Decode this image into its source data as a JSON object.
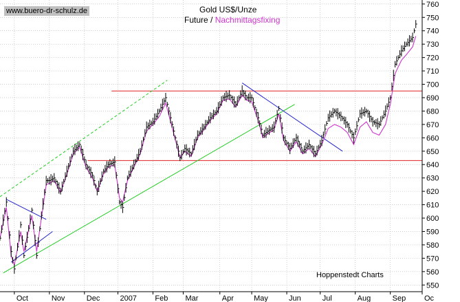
{
  "header": {
    "watermark": "www.buero-dr-schulz.de",
    "title": "Gold US$/Unze",
    "subtitle_part1": "Future /",
    "subtitle_part2": "Nachmittagsfixing"
  },
  "footer": {
    "credit": "Hoppenstedt Charts"
  },
  "colors": {
    "background": "#ffffff",
    "bars": "#000000",
    "fixing_line": "#cc33cc",
    "resistance_lines": "#e02020",
    "trend_lines": "#2222cc",
    "uptrend_channel": "#22cc22",
    "grid": "#b0b0b0"
  },
  "chart_data": {
    "type": "line",
    "title": "Gold US$/Unze",
    "subtitle": "Future / Nachmittagsfixing",
    "x_unit": "trading days from start of chart (Sep 2006)",
    "xlim": [
      0,
      265
    ],
    "ylim": [
      545,
      763
    ],
    "y_ticks": [
      550,
      560,
      570,
      580,
      590,
      600,
      610,
      620,
      630,
      640,
      650,
      660,
      670,
      680,
      690,
      700,
      710,
      720,
      730,
      740,
      750,
      760
    ],
    "x_labels": [
      {
        "label": "Oct",
        "x": 9
      },
      {
        "label": "Nov",
        "x": 31
      },
      {
        "label": "Dec",
        "x": 53
      },
      {
        "label": "2007",
        "x": 74
      },
      {
        "label": "Feb",
        "x": 96
      },
      {
        "label": "Mar",
        "x": 115
      },
      {
        "label": "Apr",
        "x": 138
      },
      {
        "label": "May",
        "x": 158
      },
      {
        "label": "Jun",
        "x": 180
      },
      {
        "label": "Jul",
        "x": 201
      },
      {
        "label": "Aug",
        "x": 223
      },
      {
        "label": "Sep",
        "x": 245
      },
      {
        "label": "Oc",
        "x": 265
      }
    ],
    "grid": true,
    "series": [
      {
        "name": "Future",
        "style": "ohlc-bars",
        "anchors": [
          [
            0,
            585
          ],
          [
            4,
            612
          ],
          [
            7,
            575
          ],
          [
            9,
            562
          ],
          [
            13,
            595
          ],
          [
            15,
            572
          ],
          [
            20,
            606
          ],
          [
            23,
            572
          ],
          [
            26,
            602
          ],
          [
            29,
            628
          ],
          [
            31,
            628
          ],
          [
            34,
            630
          ],
          [
            38,
            620
          ],
          [
            42,
            635
          ],
          [
            46,
            650
          ],
          [
            50,
            655
          ],
          [
            54,
            640
          ],
          [
            58,
            632
          ],
          [
            61,
            620
          ],
          [
            65,
            635
          ],
          [
            68,
            640
          ],
          [
            72,
            642
          ],
          [
            75,
            612
          ],
          [
            77,
            608
          ],
          [
            80,
            630
          ],
          [
            84,
            640
          ],
          [
            88,
            650
          ],
          [
            92,
            668
          ],
          [
            96,
            672
          ],
          [
            100,
            680
          ],
          [
            104,
            690
          ],
          [
            108,
            670
          ],
          [
            113,
            645
          ],
          [
            116,
            652
          ],
          [
            120,
            648
          ],
          [
            124,
            662
          ],
          [
            128,
            668
          ],
          [
            132,
            675
          ],
          [
            136,
            680
          ],
          [
            140,
            690
          ],
          [
            144,
            692
          ],
          [
            148,
            685
          ],
          [
            152,
            695
          ],
          [
            155,
            690
          ],
          [
            158,
            690
          ],
          [
            162,
            675
          ],
          [
            165,
            662
          ],
          [
            168,
            665
          ],
          [
            172,
            668
          ],
          [
            175,
            682
          ],
          [
            178,
            660
          ],
          [
            182,
            652
          ],
          [
            186,
            660
          ],
          [
            190,
            650
          ],
          [
            194,
            655
          ],
          [
            198,
            648
          ],
          [
            202,
            658
          ],
          [
            206,
            675
          ],
          [
            210,
            680
          ],
          [
            214,
            676
          ],
          [
            218,
            670
          ],
          [
            222,
            660
          ],
          [
            226,
            678
          ],
          [
            230,
            680
          ],
          [
            234,
            672
          ],
          [
            238,
            670
          ],
          [
            242,
            680
          ],
          [
            245,
            690
          ],
          [
            248,
            715
          ],
          [
            252,
            725
          ],
          [
            255,
            730
          ],
          [
            259,
            735
          ],
          [
            261,
            745
          ]
        ]
      },
      {
        "name": "Nachmittagsfixing",
        "style": "line",
        "anchors": [
          [
            0,
            585
          ],
          [
            4,
            608
          ],
          [
            7,
            572
          ],
          [
            9,
            565
          ],
          [
            13,
            590
          ],
          [
            15,
            575
          ],
          [
            20,
            602
          ],
          [
            23,
            575
          ],
          [
            26,
            600
          ],
          [
            29,
            625
          ],
          [
            31,
            626
          ],
          [
            34,
            628
          ],
          [
            38,
            619
          ],
          [
            42,
            633
          ],
          [
            46,
            648
          ],
          [
            50,
            653
          ],
          [
            54,
            638
          ],
          [
            58,
            630
          ],
          [
            61,
            620
          ],
          [
            65,
            633
          ],
          [
            68,
            638
          ],
          [
            72,
            640
          ],
          [
            75,
            615
          ],
          [
            77,
            612
          ],
          [
            80,
            628
          ],
          [
            84,
            638
          ],
          [
            88,
            648
          ],
          [
            92,
            665
          ],
          [
            96,
            670
          ],
          [
            100,
            676
          ],
          [
            104,
            686
          ],
          [
            108,
            668
          ],
          [
            113,
            645
          ],
          [
            116,
            650
          ],
          [
            120,
            646
          ],
          [
            124,
            660
          ],
          [
            128,
            666
          ],
          [
            132,
            673
          ],
          [
            136,
            678
          ],
          [
            140,
            688
          ],
          [
            144,
            689
          ],
          [
            148,
            683
          ],
          [
            152,
            692
          ],
          [
            155,
            688
          ],
          [
            158,
            687
          ],
          [
            162,
            673
          ],
          [
            165,
            660
          ],
          [
            168,
            663
          ],
          [
            172,
            666
          ],
          [
            175,
            678
          ],
          [
            178,
            658
          ],
          [
            182,
            650
          ],
          [
            186,
            657
          ],
          [
            190,
            648
          ],
          [
            194,
            652
          ],
          [
            198,
            646
          ],
          [
            202,
            655
          ],
          [
            206,
            667
          ],
          [
            210,
            670
          ],
          [
            214,
            668
          ],
          [
            218,
            664
          ],
          [
            222,
            655
          ],
          [
            226,
            668
          ],
          [
            230,
            672
          ],
          [
            234,
            664
          ],
          [
            238,
            662
          ],
          [
            242,
            670
          ],
          [
            245,
            685
          ],
          [
            248,
            708
          ],
          [
            252,
            718
          ],
          [
            255,
            722
          ],
          [
            259,
            728
          ],
          [
            261,
            736
          ]
        ]
      }
    ],
    "trend_lines": [
      {
        "kind": "resistance",
        "color": "red",
        "style": "solid",
        "from": [
          70,
          695
        ],
        "to": [
          265,
          695
        ]
      },
      {
        "kind": "support",
        "color": "red",
        "style": "solid",
        "from": [
          55,
          643
        ],
        "to": [
          265,
          643
        ]
      },
      {
        "kind": "uptrend",
        "color": "green",
        "style": "solid",
        "from": [
          2,
          559
        ],
        "to": [
          185,
          685
        ]
      },
      {
        "kind": "channel",
        "color": "green",
        "style": "dashed",
        "from": [
          0,
          616
        ],
        "to": [
          105,
          703
        ]
      },
      {
        "kind": "downtrend",
        "color": "blue",
        "style": "solid",
        "from": [
          4,
          614
        ],
        "to": [
          29,
          599
        ]
      },
      {
        "kind": "uptrend",
        "color": "blue",
        "style": "solid",
        "from": [
          7,
          567
        ],
        "to": [
          33,
          590
        ]
      },
      {
        "kind": "downtrend",
        "color": "blue",
        "style": "solid",
        "from": [
          152,
          701
        ],
        "to": [
          215,
          650
        ]
      }
    ]
  }
}
